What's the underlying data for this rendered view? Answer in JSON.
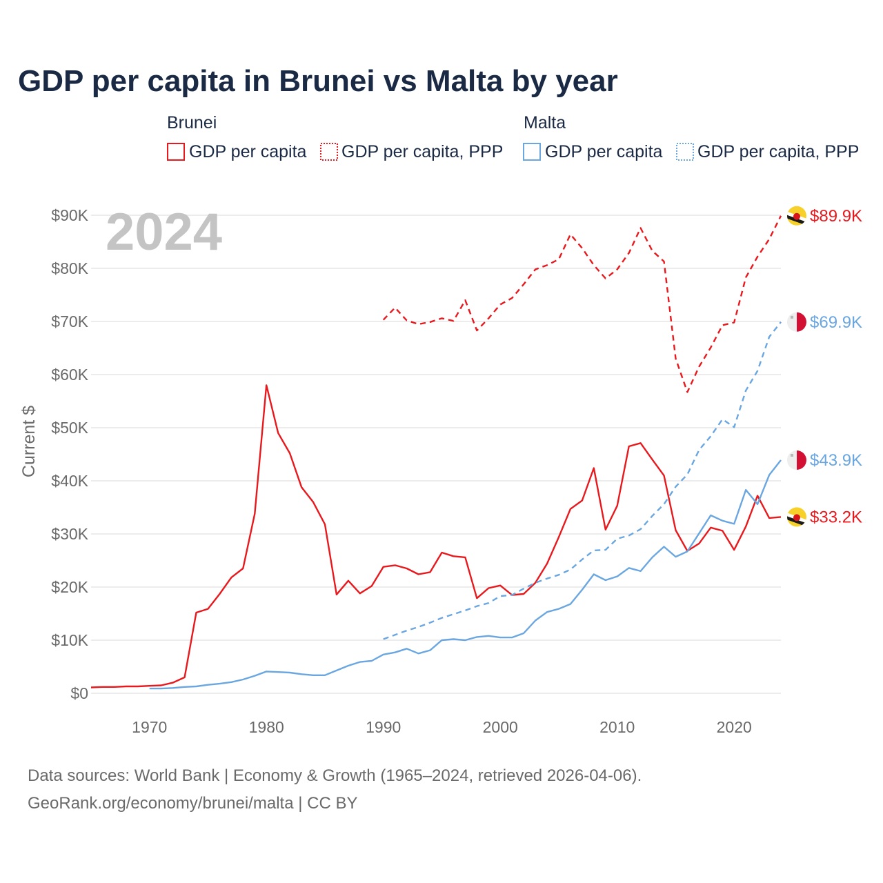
{
  "title": "GDP per capita in Brunei vs Malta by year",
  "year_overlay": "2024",
  "legend": {
    "groups": [
      {
        "name": "Brunei",
        "items": [
          {
            "label": "GDP per capita",
            "style": "solid",
            "color": "#e8191d"
          },
          {
            "label": "GDP per capita, PPP",
            "style": "dotted",
            "color": "#e8191d"
          }
        ]
      },
      {
        "name": "Malta",
        "items": [
          {
            "label": "GDP per capita",
            "style": "solid",
            "color": "#6aa6e0"
          },
          {
            "label": "GDP per capita, PPP",
            "style": "dotted",
            "color": "#6aa6e0"
          }
        ]
      }
    ]
  },
  "end_labels": [
    {
      "text": "$89.9K",
      "color": "#e8191d",
      "value": 89900,
      "flag": "brunei-flag-icon"
    },
    {
      "text": "$69.9K",
      "color": "#6aa6e0",
      "value": 69900,
      "flag": "malta-flag-icon"
    },
    {
      "text": "$43.9K",
      "color": "#6aa6e0",
      "value": 43900,
      "flag": "malta-flag-icon"
    },
    {
      "text": "$33.2K",
      "color": "#e8191d",
      "value": 33200,
      "flag": "brunei-flag-icon"
    }
  ],
  "source": {
    "line1": "Data sources: World Bank | Economy & Growth (1965–2024, retrieved 2026-04-06).",
    "line2": "GeoRank.org/economy/brunei/malta | CC BY"
  },
  "chart_data": {
    "type": "line",
    "title": "GDP per capita in Brunei vs Malta by year",
    "xlabel": "",
    "ylabel": "Current $",
    "xlim": [
      1965,
      2024
    ],
    "ylim": [
      0,
      90000
    ],
    "xticks": [
      1970,
      1980,
      1990,
      2000,
      2010,
      2020
    ],
    "xtick_labels": [
      "1970",
      "1980",
      "1990",
      "2000",
      "2010",
      "2020"
    ],
    "yticks": [
      0,
      10000,
      20000,
      30000,
      40000,
      50000,
      60000,
      70000,
      80000,
      90000
    ],
    "ytick_labels": [
      "$0",
      "$10K",
      "$20K",
      "$30K",
      "$40K",
      "$50K",
      "$60K",
      "$70K",
      "$80K",
      "$90K"
    ],
    "grid": true,
    "series": [
      {
        "name": "Brunei GDP per capita",
        "country": "Brunei",
        "color": "#e8191d",
        "dash": "solid",
        "x": [
          1965,
          1966,
          1967,
          1968,
          1969,
          1970,
          1971,
          1972,
          1973,
          1974,
          1975,
          1976,
          1977,
          1978,
          1979,
          1980,
          1981,
          1982,
          1983,
          1984,
          1985,
          1986,
          1987,
          1988,
          1989,
          1990,
          1991,
          1992,
          1993,
          1994,
          1995,
          1996,
          1997,
          1998,
          1999,
          2000,
          2001,
          2002,
          2003,
          2004,
          2005,
          2006,
          2007,
          2008,
          2009,
          2010,
          2011,
          2012,
          2013,
          2014,
          2015,
          2016,
          2017,
          2018,
          2019,
          2020,
          2021,
          2022,
          2023,
          2024
        ],
        "values": [
          1100,
          1200,
          1200,
          1300,
          1300,
          1400,
          1500,
          2000,
          3000,
          15200,
          15900,
          18700,
          21800,
          23500,
          33800,
          58000,
          49000,
          45200,
          38800,
          36000,
          31800,
          18600,
          21200,
          18800,
          20200,
          23800,
          24100,
          23500,
          22400,
          22800,
          26500,
          25800,
          25600,
          17900,
          19800,
          20300,
          18500,
          18700,
          20800,
          24400,
          29400,
          34700,
          36300,
          42400,
          30800,
          35300,
          46500,
          47100,
          44000,
          41000,
          30700,
          26800,
          28200,
          31200,
          30600,
          27000,
          31400,
          37200,
          33000,
          33200
        ]
      },
      {
        "name": "Brunei GDP per capita, PPP",
        "country": "Brunei",
        "color": "#e8191d",
        "dash": "dashed",
        "x": [
          1990,
          1991,
          1992,
          1993,
          1994,
          1995,
          1996,
          1997,
          1998,
          1999,
          2000,
          2001,
          2002,
          2003,
          2004,
          2005,
          2006,
          2007,
          2008,
          2009,
          2010,
          2011,
          2012,
          2013,
          2014,
          2015,
          2016,
          2017,
          2018,
          2019,
          2020,
          2021,
          2022,
          2023,
          2024
        ],
        "values": [
          70300,
          72600,
          70200,
          69500,
          69900,
          70600,
          70100,
          74000,
          68300,
          70600,
          73200,
          74400,
          77000,
          79800,
          80600,
          81700,
          86400,
          83800,
          80600,
          78100,
          79800,
          82900,
          87600,
          83300,
          81300,
          63000,
          56700,
          61500,
          65100,
          69300,
          69800,
          78300,
          82200,
          85500,
          89900
        ]
      },
      {
        "name": "Malta GDP per capita",
        "country": "Malta",
        "color": "#6aa6e0",
        "dash": "solid",
        "x": [
          1970,
          1971,
          1972,
          1973,
          1974,
          1975,
          1976,
          1977,
          1978,
          1979,
          1980,
          1981,
          1982,
          1983,
          1984,
          1985,
          1986,
          1987,
          1988,
          1989,
          1990,
          1991,
          1992,
          1993,
          1994,
          1995,
          1996,
          1997,
          1998,
          1999,
          2000,
          2001,
          2002,
          2003,
          2004,
          2005,
          2006,
          2007,
          2008,
          2009,
          2010,
          2011,
          2012,
          2013,
          2014,
          2015,
          2016,
          2017,
          2018,
          2019,
          2020,
          2021,
          2022,
          2023,
          2024
        ],
        "values": [
          900,
          900,
          1000,
          1200,
          1300,
          1600,
          1800,
          2100,
          2600,
          3300,
          4100,
          4000,
          3900,
          3600,
          3400,
          3400,
          4300,
          5200,
          5900,
          6100,
          7300,
          7700,
          8400,
          7500,
          8100,
          10000,
          10200,
          10000,
          10600,
          10800,
          10500,
          10500,
          11300,
          13700,
          15300,
          15900,
          16800,
          19500,
          22400,
          21300,
          22000,
          23600,
          23000,
          25600,
          27600,
          25700,
          26700,
          30100,
          33500,
          32500,
          31900,
          38300,
          35600,
          41100,
          43900
        ]
      },
      {
        "name": "Malta GDP per capita, PPP",
        "country": "Malta",
        "color": "#6aa6e0",
        "dash": "dashed",
        "x": [
          1990,
          1991,
          1992,
          1993,
          1994,
          1995,
          1996,
          1997,
          1998,
          1999,
          2000,
          2001,
          2002,
          2003,
          2004,
          2005,
          2006,
          2007,
          2008,
          2009,
          2010,
          2011,
          2012,
          2013,
          2014,
          2015,
          2016,
          2017,
          2018,
          2019,
          2020,
          2021,
          2022,
          2023,
          2024
        ],
        "values": [
          10200,
          11000,
          11800,
          12500,
          13300,
          14200,
          14900,
          15600,
          16400,
          17000,
          18300,
          18500,
          19700,
          20800,
          21600,
          22300,
          23300,
          25200,
          26900,
          27000,
          29100,
          29700,
          30900,
          33400,
          35600,
          38900,
          41200,
          45800,
          48400,
          51600,
          50100,
          57000,
          60700,
          67100,
          69900
        ]
      }
    ]
  }
}
